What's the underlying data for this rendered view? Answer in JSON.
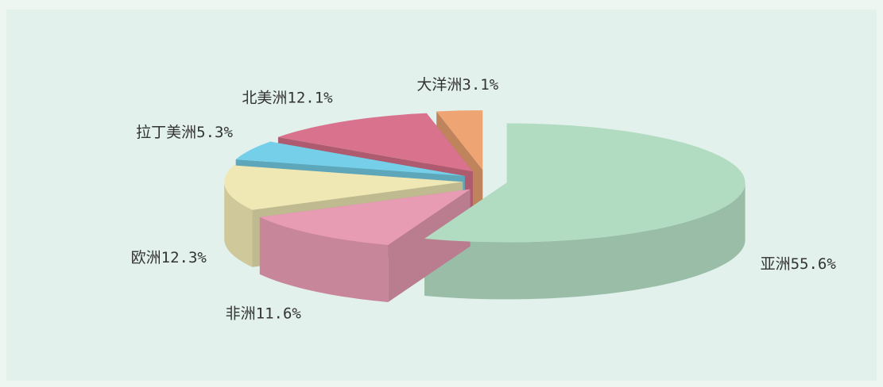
{
  "chart_data": {
    "type": "pie3d",
    "categories": [
      "亚洲",
      "非洲",
      "欧洲",
      "拉丁美洲",
      "北美洲",
      "大洋洲"
    ],
    "values": [
      55.6,
      11.6,
      12.3,
      5.3,
      12.1,
      3.1
    ],
    "value_labels": [
      "55.6%",
      "11.6%",
      "12.3%",
      "5.3%",
      "12.1%",
      "3.1%"
    ],
    "colors": [
      "#b2dcc2",
      "#e89cb4",
      "#efe8b4",
      "#76cfe8",
      "#d9728c",
      "#efa573"
    ]
  }
}
